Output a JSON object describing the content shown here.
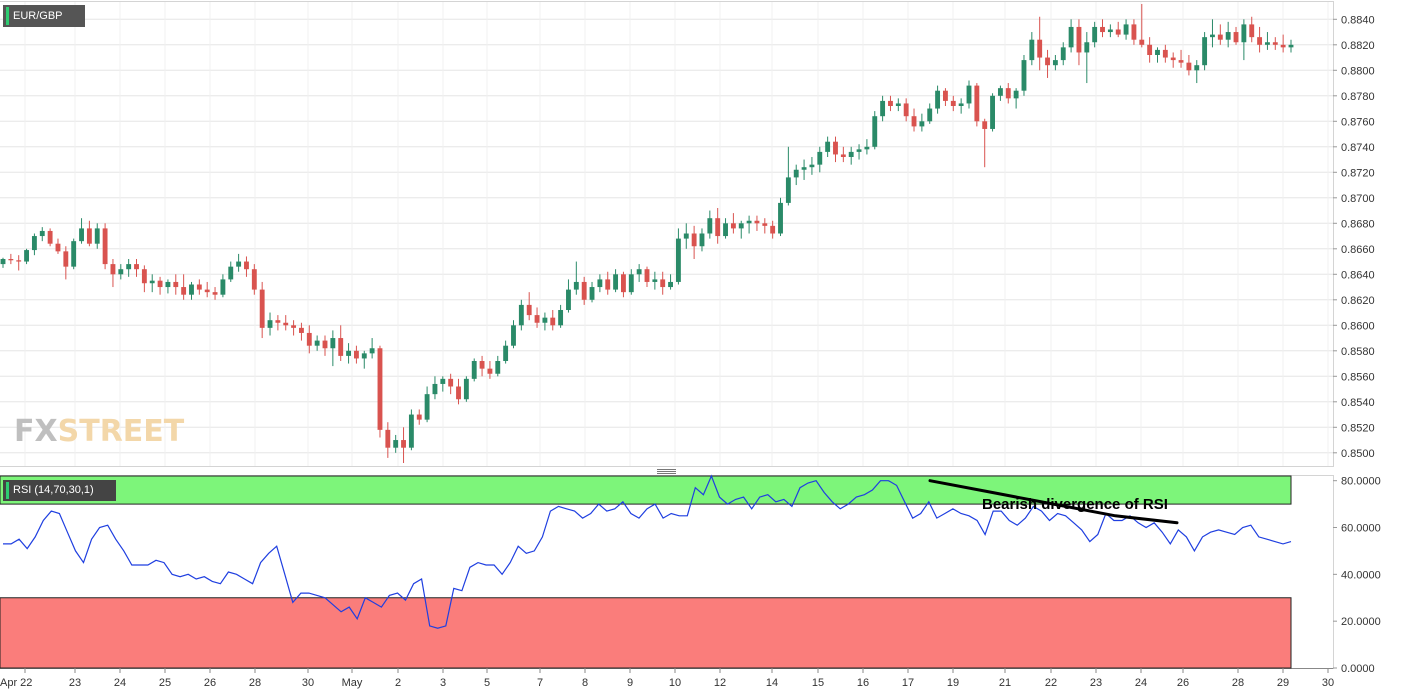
{
  "chart_data": [
    {
      "type": "candlestick",
      "symbol": "EUR/GBP",
      "x_tick_labels": [
        "Apr 22",
        "23",
        "24",
        "25",
        "26",
        "28",
        "30",
        "May",
        "2",
        "3",
        "5",
        "7",
        "8",
        "9",
        "10",
        "12",
        "14",
        "15",
        "16",
        "17",
        "19",
        "21",
        "22",
        "23",
        "24",
        "26",
        "28",
        "29",
        "30"
      ],
      "y_tick_labels": [
        "0.8840",
        "0.8820",
        "0.8800",
        "0.8780",
        "0.8760",
        "0.8740",
        "0.8720",
        "0.8700",
        "0.8680",
        "0.8660",
        "0.8640",
        "0.8620",
        "0.8600",
        "0.8580",
        "0.8560",
        "0.8540",
        "0.8520",
        "0.8500"
      ],
      "ylim": [
        0.8492,
        0.8852
      ],
      "grid": true,
      "candles": [
        [
          0.8648,
          0.8653,
          0.8645,
          0.8652
        ],
        [
          0.8652,
          0.8656,
          0.8648,
          0.8651
        ],
        [
          0.8651,
          0.8655,
          0.8643,
          0.865
        ],
        [
          0.865,
          0.866,
          0.8648,
          0.8659
        ],
        [
          0.8659,
          0.8672,
          0.8655,
          0.867
        ],
        [
          0.867,
          0.8677,
          0.8666,
          0.8674
        ],
        [
          0.8674,
          0.8676,
          0.8662,
          0.8664
        ],
        [
          0.8664,
          0.8668,
          0.8656,
          0.8658
        ],
        [
          0.8658,
          0.8662,
          0.8636,
          0.8646
        ],
        [
          0.8646,
          0.8668,
          0.8644,
          0.8666
        ],
        [
          0.8666,
          0.8684,
          0.8664,
          0.8676
        ],
        [
          0.8676,
          0.8682,
          0.8662,
          0.8664
        ],
        [
          0.8664,
          0.868,
          0.866,
          0.8676
        ],
        [
          0.8676,
          0.868,
          0.8644,
          0.8648
        ],
        [
          0.8648,
          0.8652,
          0.863,
          0.864
        ],
        [
          0.864,
          0.8648,
          0.8636,
          0.8644
        ],
        [
          0.8644,
          0.8652,
          0.8638,
          0.8648
        ],
        [
          0.8648,
          0.8652,
          0.8638,
          0.8644
        ],
        [
          0.8644,
          0.8647,
          0.8626,
          0.8633
        ],
        [
          0.8633,
          0.864,
          0.8626,
          0.8635
        ],
        [
          0.8635,
          0.8638,
          0.8624,
          0.863
        ],
        [
          0.863,
          0.8636,
          0.8625,
          0.8634
        ],
        [
          0.8634,
          0.864,
          0.8624,
          0.863
        ],
        [
          0.863,
          0.864,
          0.862,
          0.8624
        ],
        [
          0.8624,
          0.8634,
          0.862,
          0.8632
        ],
        [
          0.8632,
          0.8636,
          0.8624,
          0.8628
        ],
        [
          0.8628,
          0.8634,
          0.8622,
          0.8626
        ],
        [
          0.8626,
          0.863,
          0.862,
          0.8624
        ],
        [
          0.8624,
          0.864,
          0.8622,
          0.8636
        ],
        [
          0.8636,
          0.865,
          0.8634,
          0.8646
        ],
        [
          0.8646,
          0.8656,
          0.8642,
          0.865
        ],
        [
          0.865,
          0.8654,
          0.8638,
          0.8644
        ],
        [
          0.8644,
          0.8648,
          0.8624,
          0.8628
        ],
        [
          0.8628,
          0.8634,
          0.859,
          0.8598
        ],
        [
          0.8598,
          0.861,
          0.8592,
          0.8604
        ],
        [
          0.8604,
          0.8608,
          0.8596,
          0.8602
        ],
        [
          0.8602,
          0.8608,
          0.8596,
          0.86
        ],
        [
          0.86,
          0.8604,
          0.8592,
          0.8598
        ],
        [
          0.8598,
          0.8602,
          0.8588,
          0.8594
        ],
        [
          0.8594,
          0.86,
          0.8578,
          0.8584
        ],
        [
          0.8584,
          0.8592,
          0.858,
          0.8588
        ],
        [
          0.8588,
          0.8592,
          0.8576,
          0.8582
        ],
        [
          0.8582,
          0.8596,
          0.8568,
          0.859
        ],
        [
          0.859,
          0.86,
          0.8572,
          0.8576
        ],
        [
          0.8576,
          0.8586,
          0.857,
          0.858
        ],
        [
          0.858,
          0.8584,
          0.857,
          0.8574
        ],
        [
          0.8574,
          0.858,
          0.8566,
          0.8578
        ],
        [
          0.8578,
          0.859,
          0.8574,
          0.8582
        ],
        [
          0.8582,
          0.8584,
          0.8512,
          0.8518
        ],
        [
          0.8518,
          0.8524,
          0.8496,
          0.8504
        ],
        [
          0.8504,
          0.8514,
          0.85,
          0.851
        ],
        [
          0.851,
          0.852,
          0.8492,
          0.8504
        ],
        [
          0.8504,
          0.8534,
          0.8502,
          0.853
        ],
        [
          0.853,
          0.8534,
          0.8522,
          0.8526
        ],
        [
          0.8526,
          0.8552,
          0.8524,
          0.8546
        ],
        [
          0.8546,
          0.856,
          0.8542,
          0.8554
        ],
        [
          0.8554,
          0.856,
          0.8548,
          0.8558
        ],
        [
          0.8558,
          0.8562,
          0.8546,
          0.8552
        ],
        [
          0.8552,
          0.8558,
          0.8538,
          0.8542
        ],
        [
          0.8542,
          0.856,
          0.854,
          0.8558
        ],
        [
          0.8558,
          0.8574,
          0.8556,
          0.8572
        ],
        [
          0.8572,
          0.8576,
          0.856,
          0.8566
        ],
        [
          0.8566,
          0.8572,
          0.8558,
          0.8562
        ],
        [
          0.8562,
          0.8576,
          0.856,
          0.8572
        ],
        [
          0.8572,
          0.8588,
          0.857,
          0.8584
        ],
        [
          0.8584,
          0.8604,
          0.8582,
          0.86
        ],
        [
          0.86,
          0.862,
          0.8596,
          0.8616
        ],
        [
          0.8616,
          0.8626,
          0.8604,
          0.8608
        ],
        [
          0.8608,
          0.8614,
          0.8598,
          0.8602
        ],
        [
          0.8602,
          0.861,
          0.8596,
          0.8606
        ],
        [
          0.8606,
          0.8612,
          0.8596,
          0.86
        ],
        [
          0.86,
          0.8616,
          0.8598,
          0.8612
        ],
        [
          0.8612,
          0.8636,
          0.861,
          0.8628
        ],
        [
          0.8628,
          0.865,
          0.8624,
          0.8634
        ],
        [
          0.8634,
          0.8638,
          0.8616,
          0.862
        ],
        [
          0.862,
          0.8634,
          0.8618,
          0.863
        ],
        [
          0.863,
          0.864,
          0.8626,
          0.8636
        ],
        [
          0.8636,
          0.8642,
          0.8624,
          0.8628
        ],
        [
          0.8628,
          0.8644,
          0.8626,
          0.864
        ],
        [
          0.864,
          0.8642,
          0.8622,
          0.8626
        ],
        [
          0.8626,
          0.8644,
          0.8624,
          0.864
        ],
        [
          0.864,
          0.8648,
          0.8634,
          0.8644
        ],
        [
          0.8644,
          0.8646,
          0.863,
          0.8634
        ],
        [
          0.8634,
          0.8642,
          0.8628,
          0.8636
        ],
        [
          0.8636,
          0.8642,
          0.8624,
          0.863
        ],
        [
          0.863,
          0.864,
          0.8628,
          0.8634
        ],
        [
          0.8634,
          0.8676,
          0.8632,
          0.8668
        ],
        [
          0.8668,
          0.868,
          0.866,
          0.8672
        ],
        [
          0.8672,
          0.8678,
          0.8652,
          0.8662
        ],
        [
          0.8662,
          0.8676,
          0.8658,
          0.8672
        ],
        [
          0.8672,
          0.869,
          0.8668,
          0.8684
        ],
        [
          0.8684,
          0.8692,
          0.8664,
          0.867
        ],
        [
          0.867,
          0.8684,
          0.8668,
          0.868
        ],
        [
          0.868,
          0.8688,
          0.8672,
          0.8676
        ],
        [
          0.8676,
          0.8682,
          0.8668,
          0.868
        ],
        [
          0.868,
          0.8686,
          0.8672,
          0.8682
        ],
        [
          0.8682,
          0.8686,
          0.8674,
          0.868
        ],
        [
          0.868,
          0.8684,
          0.8672,
          0.8678
        ],
        [
          0.8678,
          0.8682,
          0.8668,
          0.8672
        ],
        [
          0.8672,
          0.87,
          0.867,
          0.8696
        ],
        [
          0.8696,
          0.874,
          0.8694,
          0.8716
        ],
        [
          0.8716,
          0.8726,
          0.871,
          0.8722
        ],
        [
          0.8722,
          0.873,
          0.8714,
          0.8724
        ],
        [
          0.8724,
          0.8732,
          0.8718,
          0.8726
        ],
        [
          0.8726,
          0.874,
          0.872,
          0.8736
        ],
        [
          0.8736,
          0.8748,
          0.8732,
          0.8744
        ],
        [
          0.8744,
          0.8748,
          0.8728,
          0.8734
        ],
        [
          0.8734,
          0.874,
          0.8728,
          0.8732
        ],
        [
          0.8732,
          0.874,
          0.8726,
          0.8736
        ],
        [
          0.8736,
          0.8742,
          0.873,
          0.8738
        ],
        [
          0.8738,
          0.8746,
          0.8734,
          0.874
        ],
        [
          0.874,
          0.8768,
          0.8738,
          0.8764
        ],
        [
          0.8764,
          0.878,
          0.876,
          0.8776
        ],
        [
          0.8776,
          0.878,
          0.8768,
          0.8772
        ],
        [
          0.8772,
          0.8778,
          0.8768,
          0.8774
        ],
        [
          0.8774,
          0.8778,
          0.876,
          0.8764
        ],
        [
          0.8764,
          0.877,
          0.8752,
          0.8756
        ],
        [
          0.8756,
          0.8766,
          0.8752,
          0.876
        ],
        [
          0.876,
          0.8774,
          0.8758,
          0.877
        ],
        [
          0.877,
          0.8788,
          0.8766,
          0.8784
        ],
        [
          0.8784,
          0.8786,
          0.8772,
          0.8776
        ],
        [
          0.8776,
          0.878,
          0.8768,
          0.8772
        ],
        [
          0.8772,
          0.8778,
          0.8766,
          0.8774
        ],
        [
          0.8774,
          0.8792,
          0.877,
          0.8788
        ],
        [
          0.8788,
          0.879,
          0.8756,
          0.876
        ],
        [
          0.876,
          0.8762,
          0.8724,
          0.8754
        ],
        [
          0.8754,
          0.8782,
          0.8752,
          0.878
        ],
        [
          0.878,
          0.8788,
          0.8776,
          0.8786
        ],
        [
          0.8786,
          0.879,
          0.8774,
          0.8778
        ],
        [
          0.8778,
          0.8786,
          0.877,
          0.8784
        ],
        [
          0.8784,
          0.8812,
          0.878,
          0.8808
        ],
        [
          0.8808,
          0.883,
          0.8804,
          0.8824
        ],
        [
          0.8824,
          0.8842,
          0.88,
          0.881
        ],
        [
          0.881,
          0.8816,
          0.8794,
          0.8804
        ],
        [
          0.8804,
          0.8812,
          0.88,
          0.8808
        ],
        [
          0.8808,
          0.8822,
          0.8804,
          0.8818
        ],
        [
          0.8818,
          0.884,
          0.8814,
          0.8834
        ],
        [
          0.8834,
          0.884,
          0.8804,
          0.8814
        ],
        [
          0.8814,
          0.883,
          0.879,
          0.8822
        ],
        [
          0.8822,
          0.8838,
          0.8818,
          0.8834
        ],
        [
          0.8834,
          0.884,
          0.8826,
          0.883
        ],
        [
          0.883,
          0.8836,
          0.8826,
          0.8832
        ],
        [
          0.8832,
          0.8838,
          0.8826,
          0.8828
        ],
        [
          0.8828,
          0.884,
          0.8824,
          0.8836
        ],
        [
          0.8836,
          0.884,
          0.882,
          0.8824
        ],
        [
          0.8824,
          0.8852,
          0.8818,
          0.882
        ],
        [
          0.882,
          0.8826,
          0.8806,
          0.8812
        ],
        [
          0.8812,
          0.8818,
          0.8806,
          0.8816
        ],
        [
          0.8816,
          0.882,
          0.8806,
          0.881
        ],
        [
          0.881,
          0.8814,
          0.8802,
          0.8808
        ],
        [
          0.8808,
          0.8816,
          0.8802,
          0.8806
        ],
        [
          0.8806,
          0.8812,
          0.8796,
          0.88
        ],
        [
          0.88,
          0.8808,
          0.879,
          0.8804
        ],
        [
          0.8804,
          0.883,
          0.88,
          0.8826
        ],
        [
          0.8826,
          0.884,
          0.8818,
          0.8828
        ],
        [
          0.8828,
          0.8836,
          0.882,
          0.8824
        ],
        [
          0.8824,
          0.8838,
          0.8818,
          0.883
        ],
        [
          0.883,
          0.8834,
          0.882,
          0.8822
        ],
        [
          0.8822,
          0.884,
          0.8808,
          0.8836
        ],
        [
          0.8836,
          0.8842,
          0.8822,
          0.8826
        ],
        [
          0.8826,
          0.8834,
          0.8814,
          0.882
        ],
        [
          0.882,
          0.883,
          0.8816,
          0.8822
        ],
        [
          0.8822,
          0.8826,
          0.8816,
          0.882
        ],
        [
          0.882,
          0.8828,
          0.8814,
          0.8818
        ],
        [
          0.8818,
          0.8824,
          0.8814,
          0.882
        ]
      ]
    },
    {
      "type": "line",
      "indicator": "RSI (14,70,30,1)",
      "y_tick_labels": [
        "80.0000",
        "60.0000",
        "40.0000",
        "20.0000",
        "0.0000"
      ],
      "ylim": [
        0,
        82
      ],
      "overbought": 70,
      "oversold": 30,
      "bands": {
        "overbought_color": "#7df57a",
        "oversold_color": "#fa7d7b"
      },
      "line_color": "#1f3fe0",
      "series": [
        {
          "values": [
            53,
            53,
            55,
            51,
            56,
            63,
            67,
            66,
            58,
            50,
            45,
            55,
            60,
            61,
            55,
            50,
            44,
            44,
            44,
            46,
            45,
            40,
            39,
            40,
            38,
            39,
            37,
            36,
            41,
            40,
            38,
            36,
            45,
            49,
            52,
            40,
            28,
            32,
            32,
            31,
            30,
            27,
            24,
            26,
            21,
            30,
            28,
            26,
            31,
            32,
            29,
            36,
            38,
            18,
            17,
            18,
            34,
            33,
            43,
            45,
            44,
            44,
            40,
            45,
            52,
            49,
            50,
            56,
            67,
            69,
            68,
            67,
            64,
            66,
            70,
            67,
            68,
            71,
            66,
            64,
            68,
            70,
            64,
            66,
            65,
            65,
            77,
            74,
            82,
            73,
            70,
            72,
            73,
            68,
            73,
            74,
            71,
            72,
            69,
            77,
            79,
            80,
            75,
            71,
            68,
            70,
            73,
            74,
            76,
            80,
            80,
            78,
            71,
            64,
            66,
            71,
            64,
            66,
            68,
            66,
            65,
            63,
            57,
            67,
            67,
            63,
            61,
            64,
            69,
            67,
            63,
            66,
            65,
            62,
            59,
            54,
            57,
            66,
            63,
            63,
            65,
            62,
            60,
            62,
            58,
            53,
            59,
            56,
            50,
            56,
            58,
            59,
            58,
            57,
            60,
            61,
            56,
            55,
            54,
            53,
            54
          ]
        },
        {
          "values": [
            80,
            75,
            70,
            65,
            62
          ]
        }
      ],
      "annotation": {
        "text": "Bearish divergence of RSI"
      }
    }
  ],
  "badges": {
    "price": "EUR/GBP",
    "rsi": "RSI (14,70,30,1)"
  },
  "watermark": {
    "part1": "FX",
    "part2": "STREET"
  },
  "colors": {
    "bull": "#2a8a68",
    "bear": "#d9534f",
    "grid": "#e6e6e6",
    "axis_text": "#333333"
  }
}
